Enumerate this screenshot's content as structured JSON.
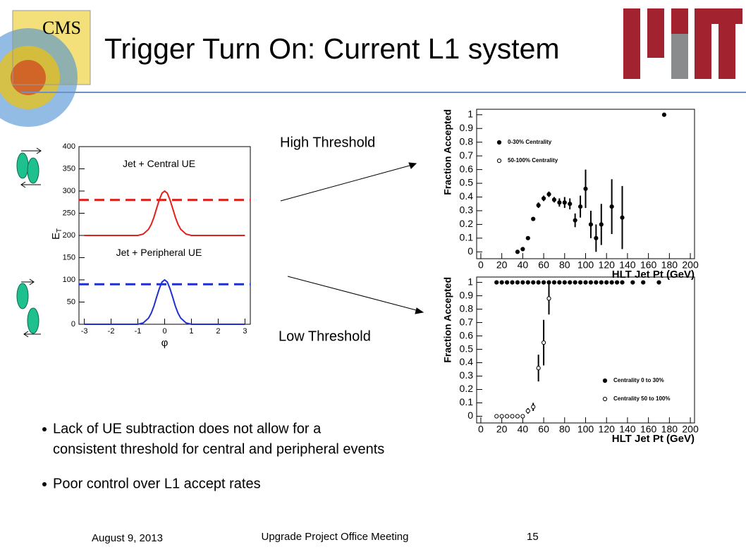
{
  "header": {
    "title": "Trigger Turn On: Current L1 system"
  },
  "labels": {
    "high": "High Threshold",
    "low": "Low Threshold"
  },
  "bullets": [
    "Lack of UE subtraction does not allow for a",
    "consistent threshold for central and peripheral events",
    "Poor control over L1 accept rates"
  ],
  "footer": {
    "date": "August 9, 2013",
    "meeting": "Upgrade Project Office Meeting",
    "page": "15"
  },
  "chart_data": [
    {
      "type": "line",
      "xlabel": "φ",
      "ylabel": "E",
      "ylabel_sub": "T",
      "x": [
        -3,
        -1,
        -0.8,
        -0.6,
        -0.5,
        -0.4,
        -0.3,
        -0.2,
        -0.1,
        0,
        0.1,
        0.2,
        0.3,
        0.4,
        0.5,
        0.6,
        0.8,
        1,
        3
      ],
      "series": [
        {
          "name": "Jet + Central UE",
          "color": "#e0201b",
          "values": [
            200,
            200,
            203,
            214,
            225,
            241,
            261,
            280,
            295,
            300,
            295,
            280,
            261,
            241,
            225,
            214,
            203,
            200,
            200
          ]
        },
        {
          "name": "Jet + Peripheral UE",
          "color": "#1f2fd0",
          "values": [
            0,
            0,
            3,
            14,
            25,
            41,
            61,
            80,
            95,
            100,
            95,
            80,
            61,
            41,
            25,
            14,
            3,
            0,
            0
          ]
        }
      ],
      "hlines": [
        {
          "value": 280,
          "color": "#e0201b"
        },
        {
          "value": 90,
          "color": "#1f2fd0"
        }
      ],
      "xlim": [
        -3.2,
        3.2
      ],
      "xticks": [
        -3,
        -2,
        -1,
        0,
        1,
        2,
        3
      ],
      "ylim": [
        0,
        400
      ],
      "yticks": [
        0,
        50,
        100,
        150,
        200,
        250,
        300,
        350,
        400
      ]
    },
    {
      "type": "scatter",
      "xlabel": "HLT Jet Pt (GeV)",
      "ylabel": "Fraction Accepted",
      "legend": "upper left",
      "series": [
        {
          "name": "0-30% Centrality",
          "marker": "filled",
          "x": [
            35,
            40,
            45,
            50,
            55,
            60,
            65,
            70,
            75,
            80,
            85,
            90,
            95,
            100,
            105,
            110,
            115,
            125,
            135,
            175
          ],
          "values": [
            0,
            0.02,
            0.1,
            0.24,
            0.34,
            0.39,
            0.42,
            0.38,
            0.36,
            0.36,
            0.35,
            0.23,
            0.33,
            0.46,
            0.2,
            0.1,
            0.2,
            0.33,
            0.25,
            1
          ],
          "errors": [
            0.01,
            0.01,
            0.01,
            0.01,
            0.02,
            0.02,
            0.02,
            0.02,
            0.03,
            0.04,
            0.04,
            0.05,
            0.08,
            0.14,
            0.1,
            0.1,
            0.15,
            0.2,
            0.23,
            0
          ]
        },
        {
          "name": "50-100% Centrality",
          "marker": "open",
          "x": [],
          "values": [],
          "errors": []
        }
      ],
      "xlim": [
        -4,
        204
      ],
      "xticks": [
        0,
        20,
        40,
        60,
        80,
        100,
        120,
        140,
        160,
        180,
        200
      ],
      "ylim": [
        -0.05,
        1.04
      ],
      "yticks": [
        0,
        0.1,
        0.2,
        0.3,
        0.4,
        0.5,
        0.6,
        0.7,
        0.8,
        0.9,
        1
      ]
    },
    {
      "type": "scatter",
      "xlabel": "HLT Jet Pt (GeV)",
      "ylabel": "Fraction Accepted",
      "legend": "lower right",
      "series": [
        {
          "name": "Centrality 0 to 30%",
          "marker": "filled",
          "x": [
            15,
            20,
            25,
            30,
            35,
            40,
            45,
            50,
            55,
            60,
            65,
            70,
            75,
            80,
            85,
            90,
            95,
            100,
            105,
            110,
            115,
            120,
            125,
            130,
            135,
            145,
            155,
            170
          ],
          "values": [
            1,
            1,
            1,
            1,
            1,
            1,
            1,
            1,
            1,
            1,
            1,
            1,
            1,
            1,
            1,
            1,
            1,
            1,
            1,
            1,
            1,
            1,
            1,
            1,
            1,
            1,
            1,
            1
          ],
          "errors": [
            0,
            0,
            0,
            0,
            0,
            0,
            0,
            0,
            0,
            0,
            0,
            0,
            0,
            0,
            0,
            0,
            0,
            0,
            0,
            0,
            0,
            0,
            0,
            0,
            0,
            0,
            0,
            0
          ]
        },
        {
          "name": "Centrality 50 to 100%",
          "marker": "open",
          "x": [
            15,
            20,
            25,
            30,
            35,
            40,
            45,
            50,
            55,
            60,
            65
          ],
          "values": [
            0,
            0,
            0,
            0,
            0,
            0,
            0.04,
            0.07,
            0.36,
            0.55,
            0.88
          ],
          "errors": [
            0,
            0,
            0,
            0,
            0,
            0,
            0.02,
            0.03,
            0.1,
            0.17,
            0.12
          ]
        }
      ],
      "xlim": [
        -4,
        204
      ],
      "xticks": [
        0,
        20,
        40,
        60,
        80,
        100,
        120,
        140,
        160,
        180,
        200
      ],
      "ylim": [
        -0.05,
        1.04
      ],
      "yticks": [
        0,
        0.1,
        0.2,
        0.3,
        0.4,
        0.5,
        0.6,
        0.7,
        0.8,
        0.9,
        1
      ]
    }
  ]
}
